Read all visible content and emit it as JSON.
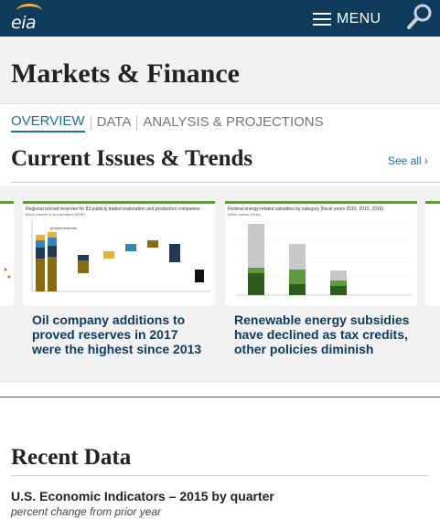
{
  "header": {
    "logo_text": "eia",
    "menu_label": "MENU"
  },
  "page": {
    "title": "Markets & Finance"
  },
  "tabs": [
    {
      "label": "OVERVIEW",
      "active": true
    },
    {
      "label": "DATA",
      "active": false
    },
    {
      "label": "ANALYSIS & PROJECTIONS",
      "active": false
    }
  ],
  "trends": {
    "title": "Current Issues & Trends",
    "see_all": "See all ›",
    "cards": [
      {
        "headline": "Oil company additions to proved reserves in 2017 were the highest since 2013",
        "chart_title": "Regional proved reserves for 83 publicly traded exploration and production companies",
        "chart_sub": "billion barrels of oil-equivalent (BOE)"
      },
      {
        "headline": "Renewable energy subsidies have declined as tax credits, other policies diminish",
        "chart_title": "Federal energy-related subsidies by category (fiscal years 2010, 2013, 2016)",
        "chart_sub": "billion dollars (2016)"
      }
    ]
  },
  "recent": {
    "title": "Recent Data",
    "indicator_title": "U.S. Economic Indicators – 2015 by quarter",
    "indicator_sub": "percent change from prior year"
  }
}
